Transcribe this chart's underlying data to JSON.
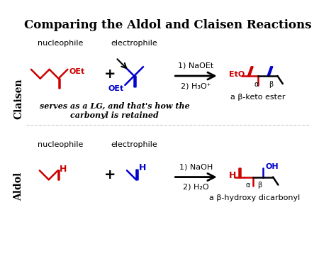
{
  "title": "Comparing the Aldol and Claisen Reactions",
  "title_fontsize": 12,
  "bg_color": "#ffffff",
  "text_color": "#000000",
  "red": "#cc0000",
  "blue": "#0000cc",
  "black": "#000000",
  "claisen_label": "Claisen",
  "aldol_label": "Aldol",
  "nucleophile": "nucleophile",
  "electrophile": "electrophile",
  "claisen_reagents": "1) NaOEt\n2) H₃O⁺",
  "aldol_reagents": "1) NaOH\n2) H₂O",
  "claisen_product_label": "a β-keto ester",
  "aldol_product_label": "a β-hydroxy dicarbonyl",
  "italic_text": "serves as a LG, and that's how the\ncarbonyl is retained"
}
